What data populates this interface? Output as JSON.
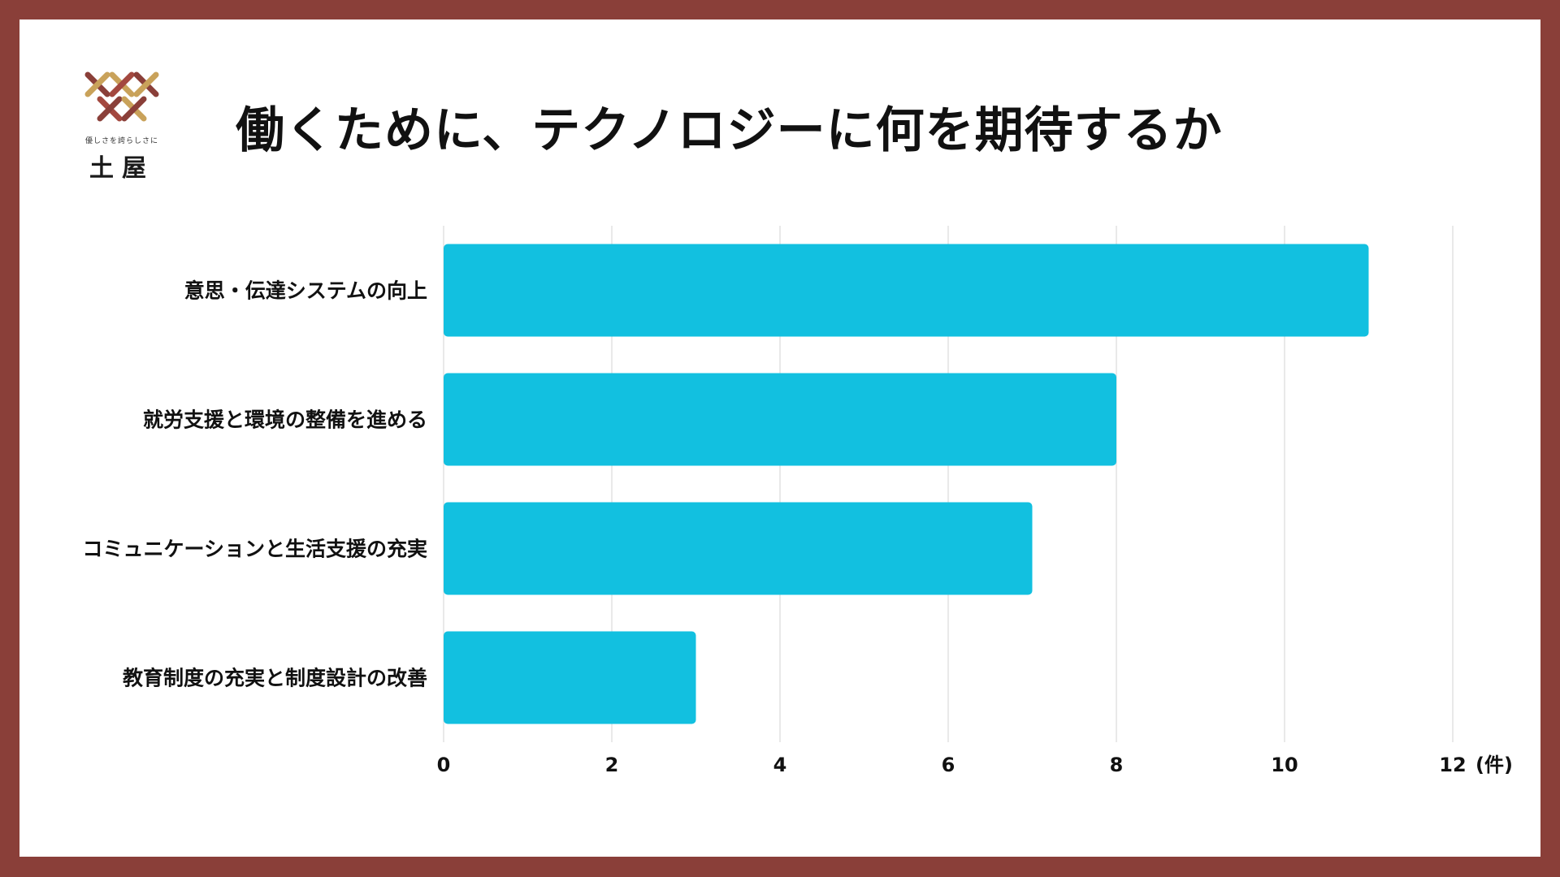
{
  "header": {
    "title": "働くために、テクノロジーに何を期待するか"
  },
  "logo": {
    "tagline": "優しさを誇らしさに",
    "name": "土屋",
    "colors": [
      "#8a3f39",
      "#c9a25a",
      "#a3483f"
    ]
  },
  "colors": {
    "border": "#8a3f39",
    "bar": "#12c0e0",
    "grid": "#e2e2e2"
  },
  "chart_data": {
    "type": "bar",
    "orientation": "horizontal",
    "categories": [
      "意思・伝達システムの向上",
      "就労支援と環境の整備を進める",
      "コミュニケーションと生活支援の充実",
      "教育制度の充実と制度設計の改善"
    ],
    "values": [
      11,
      8,
      7,
      3
    ],
    "xlim": [
      0,
      12
    ],
    "xticks": [
      "0",
      "2",
      "4",
      "6",
      "8",
      "10",
      "12"
    ],
    "xlabel": "(件)",
    "grid": true
  }
}
